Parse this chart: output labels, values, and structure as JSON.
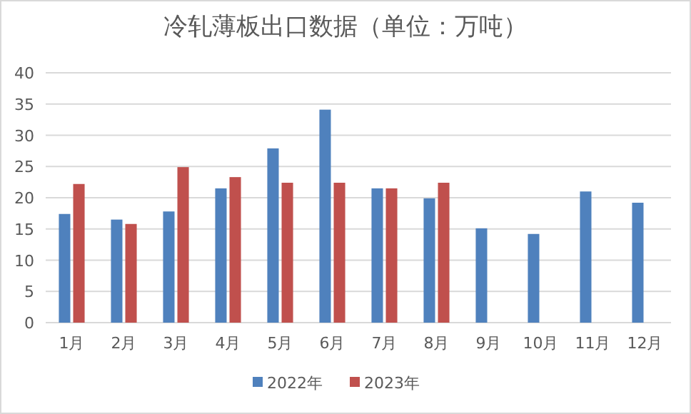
{
  "chart_data": {
    "type": "bar",
    "title": "冷轧薄板出口数据（单位：万吨）",
    "categories": [
      "1月",
      "2月",
      "3月",
      "4月",
      "5月",
      "6月",
      "7月",
      "8月",
      "9月",
      "10月",
      "11月",
      "12月"
    ],
    "series": [
      {
        "name": "2022年",
        "color": "#4f81bd",
        "values": [
          17.4,
          16.5,
          17.8,
          21.5,
          27.9,
          34.1,
          21.5,
          19.9,
          15.1,
          14.2,
          21.0,
          19.2
        ]
      },
      {
        "name": "2023年",
        "color": "#c0504d",
        "values": [
          22.2,
          15.8,
          24.9,
          23.3,
          22.4,
          22.4,
          21.5,
          22.4,
          null,
          null,
          null,
          null
        ]
      }
    ],
    "ylim": [
      0,
      40
    ],
    "yticks": [
      0,
      5,
      10,
      15,
      20,
      25,
      30,
      35,
      40
    ],
    "grid": "y",
    "legend": "bottom"
  }
}
